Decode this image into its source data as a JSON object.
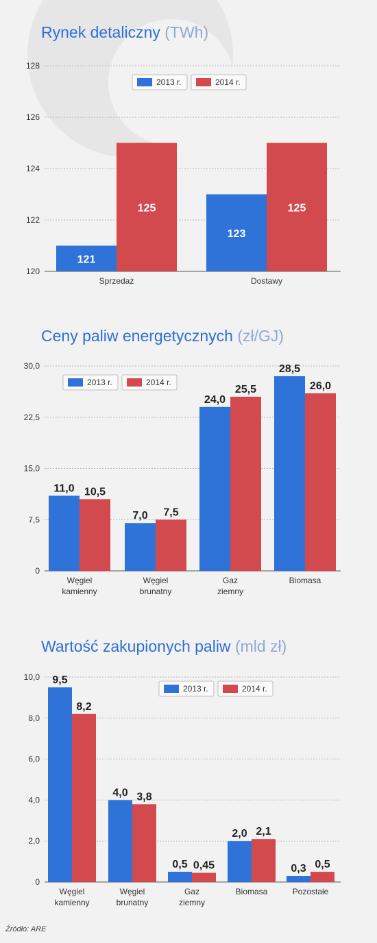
{
  "source": "Źródło: ARE",
  "colors": {
    "series_2013": "#2f73d9",
    "series_2014": "#d34a4e",
    "title": "#2f6fd8",
    "title_unit": "#8fa9d6",
    "grid": "#b8b8b8"
  },
  "chart_data": [
    {
      "type": "bar",
      "title": "Rynek detaliczny",
      "unit": "(TWh)",
      "categories": [
        [
          "Sprzedaż"
        ],
        [
          "Dostawy"
        ]
      ],
      "series": [
        {
          "name": "2013 r.",
          "values": [
            121,
            123
          ],
          "labels": [
            "121",
            "123"
          ]
        },
        {
          "name": "2014 r.",
          "values": [
            125,
            125
          ],
          "labels": [
            "125",
            "125"
          ]
        }
      ],
      "yticks": [
        "120",
        "122",
        "124",
        "126",
        "128"
      ],
      "ylim": [
        120,
        128
      ],
      "grid": true,
      "data_labels": "inside",
      "legend": "top-center"
    },
    {
      "type": "bar",
      "title": "Ceny paliw energetycznych",
      "unit": "(zł/GJ)",
      "categories": [
        [
          "Węgiel",
          "kamienny"
        ],
        [
          "Węgiel",
          "brunatny"
        ],
        [
          "Gaz",
          "ziemny"
        ],
        [
          "Biomasa"
        ]
      ],
      "series": [
        {
          "name": "2013 r.",
          "values": [
            11.0,
            7.0,
            24.0,
            28.5
          ],
          "labels": [
            "11,0",
            "7,0",
            "24,0",
            "28,5"
          ]
        },
        {
          "name": "2014 r.",
          "values": [
            10.5,
            7.5,
            25.5,
            26.0
          ],
          "labels": [
            "10,5",
            "7,5",
            "25,5",
            "26,0"
          ]
        }
      ],
      "yticks": [
        "0",
        "7,5",
        "15,0",
        "22,5",
        "30,0"
      ],
      "ylim": [
        0,
        30
      ],
      "grid": true,
      "data_labels": "above",
      "legend": "top-left"
    },
    {
      "type": "bar",
      "title": "Wartość zakupionych paliw",
      "unit": "(mld zł)",
      "categories": [
        [
          "Węgiel",
          "kamienny"
        ],
        [
          "Węgiel",
          "brunatny"
        ],
        [
          "Gaz",
          "ziemny"
        ],
        [
          "Biomasa"
        ],
        [
          "Pozostałe"
        ]
      ],
      "series": [
        {
          "name": "2013 r.",
          "values": [
            9.5,
            4.0,
            0.5,
            2.0,
            0.3
          ],
          "labels": [
            "9,5",
            "4,0",
            "0,5",
            "2,0",
            "0,3"
          ]
        },
        {
          "name": "2014 r.",
          "values": [
            8.2,
            3.8,
            0.45,
            2.1,
            0.5
          ],
          "labels": [
            "8,2",
            "3,8",
            "0,45",
            "2,1",
            "0,5"
          ]
        }
      ],
      "yticks": [
        "0",
        "2,0",
        "4,0",
        "6,0",
        "8,0",
        "10,0"
      ],
      "ylim": [
        0,
        10
      ],
      "grid": true,
      "data_labels": "above",
      "legend": "top-right"
    }
  ]
}
